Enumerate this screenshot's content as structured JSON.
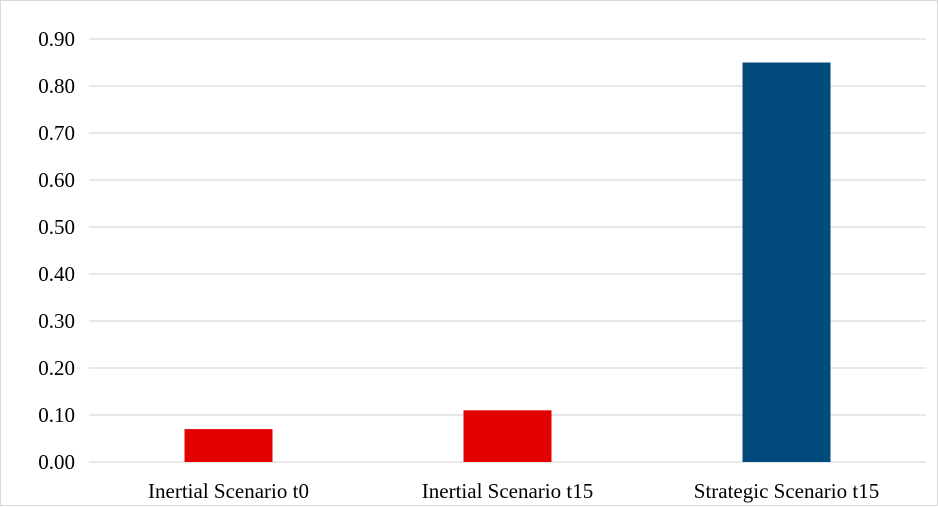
{
  "chart_data": {
    "type": "bar",
    "title": "",
    "xlabel": "",
    "ylabel": "",
    "categories": [
      "Inertial Scenario t0",
      "Inertial Scenario t15",
      "Strategic Scenario t15"
    ],
    "values": [
      0.07,
      0.11,
      0.85
    ],
    "bar_colors": [
      "#e30000",
      "#e30000",
      "#004a7c"
    ],
    "ylim": [
      0,
      0.9
    ],
    "yticks": [
      "0.00",
      "0.10",
      "0.20",
      "0.30",
      "0.40",
      "0.50",
      "0.60",
      "0.70",
      "0.80",
      "0.90"
    ],
    "grid": true,
    "gridline_color": "#d9d9d9",
    "legend": "none"
  }
}
